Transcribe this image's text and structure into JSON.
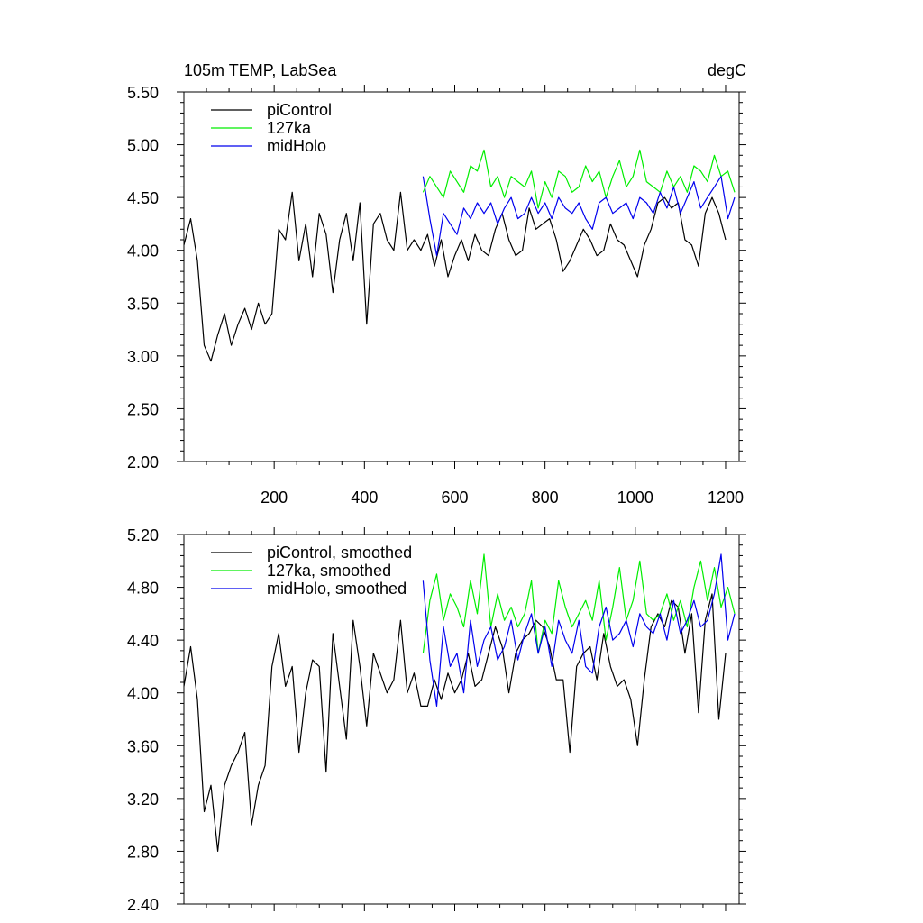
{
  "chart_data": [
    {
      "type": "line",
      "title_left": "105m TEMP, LabSea",
      "title_right": "degC",
      "xlim": [
        0,
        1230
      ],
      "ylim": [
        2.0,
        5.5
      ],
      "yticks": [
        "2.00",
        "2.50",
        "3.00",
        "3.50",
        "4.00",
        "4.50",
        "5.00",
        "5.50"
      ],
      "yticks_values": [
        2.0,
        2.5,
        3.0,
        3.5,
        4.0,
        4.5,
        5.0,
        5.5
      ],
      "xticks": [
        "200",
        "400",
        "600",
        "800",
        "1000",
        "1200"
      ],
      "xticks_values": [
        200,
        400,
        600,
        800,
        1000,
        1200
      ],
      "series": [
        {
          "name": "piControl",
          "color": "#000000",
          "x": [
            0,
            15,
            30,
            45,
            60,
            75,
            90,
            105,
            120,
            135,
            150,
            165,
            180,
            195,
            210,
            225,
            240,
            255,
            270,
            285,
            300,
            315,
            330,
            345,
            360,
            375,
            390,
            405,
            420,
            435,
            450,
            465,
            480,
            495,
            510,
            525,
            540,
            555,
            570,
            585,
            600,
            615,
            630,
            645,
            660,
            675,
            690,
            705,
            720,
            735,
            750,
            765,
            780,
            795,
            810,
            825,
            840,
            855,
            870,
            885,
            900,
            915,
            930,
            945,
            960,
            975,
            990,
            1005,
            1020,
            1035,
            1050,
            1065,
            1080,
            1095,
            1110,
            1125,
            1140,
            1155,
            1170,
            1185,
            1200
          ],
          "values": [
            4.05,
            4.3,
            3.9,
            3.1,
            2.95,
            3.2,
            3.4,
            3.1,
            3.3,
            3.45,
            3.25,
            3.5,
            3.3,
            3.4,
            4.2,
            4.1,
            4.55,
            3.9,
            4.25,
            3.75,
            4.35,
            4.15,
            3.6,
            4.1,
            4.35,
            3.9,
            4.45,
            3.3,
            4.25,
            4.35,
            4.1,
            4.0,
            4.55,
            4.0,
            4.1,
            4.0,
            4.15,
            3.85,
            4.1,
            3.75,
            3.95,
            4.1,
            3.9,
            4.15,
            4.0,
            3.95,
            4.2,
            4.35,
            4.1,
            3.95,
            4.0,
            4.4,
            4.2,
            4.25,
            4.3,
            4.1,
            3.8,
            3.9,
            4.05,
            4.2,
            4.1,
            3.95,
            4.0,
            4.25,
            4.1,
            4.05,
            3.9,
            3.75,
            4.05,
            4.2,
            4.45,
            4.5,
            4.4,
            4.45,
            4.1,
            4.05,
            3.85,
            4.35,
            4.5,
            4.35,
            4.1
          ]
        },
        {
          "name": "127ka",
          "color": "#00ee00",
          "x": [
            530,
            545,
            560,
            575,
            590,
            605,
            620,
            635,
            650,
            665,
            680,
            695,
            710,
            725,
            740,
            755,
            770,
            785,
            800,
            815,
            830,
            845,
            860,
            875,
            890,
            905,
            920,
            935,
            950,
            965,
            980,
            995,
            1010,
            1025,
            1040,
            1055,
            1070,
            1085,
            1100,
            1115,
            1130,
            1145,
            1160,
            1175,
            1190,
            1205,
            1220
          ],
          "values": [
            4.55,
            4.7,
            4.6,
            4.5,
            4.75,
            4.65,
            4.55,
            4.8,
            4.75,
            4.95,
            4.6,
            4.7,
            4.5,
            4.7,
            4.65,
            4.6,
            4.75,
            4.4,
            4.65,
            4.5,
            4.75,
            4.7,
            4.55,
            4.6,
            4.8,
            4.65,
            4.75,
            4.5,
            4.7,
            4.85,
            4.6,
            4.7,
            4.95,
            4.65,
            4.6,
            4.55,
            4.75,
            4.6,
            4.7,
            4.55,
            4.8,
            4.75,
            4.65,
            4.9,
            4.7,
            4.75,
            4.55
          ]
        },
        {
          "name": "midHolo",
          "color": "#0000ee",
          "x": [
            530,
            545,
            560,
            575,
            590,
            605,
            620,
            635,
            650,
            665,
            680,
            695,
            710,
            725,
            740,
            755,
            770,
            785,
            800,
            815,
            830,
            845,
            860,
            875,
            890,
            905,
            920,
            935,
            950,
            965,
            980,
            995,
            1010,
            1025,
            1040,
            1055,
            1070,
            1085,
            1100,
            1115,
            1130,
            1145,
            1160,
            1175,
            1190,
            1205,
            1220
          ],
          "values": [
            4.7,
            4.3,
            3.95,
            4.35,
            4.25,
            4.15,
            4.4,
            4.3,
            4.45,
            4.35,
            4.45,
            4.25,
            4.4,
            4.5,
            4.3,
            4.35,
            4.5,
            4.35,
            4.45,
            4.3,
            4.5,
            4.4,
            4.35,
            4.45,
            4.3,
            4.2,
            4.45,
            4.5,
            4.35,
            4.4,
            4.45,
            4.3,
            4.5,
            4.45,
            4.35,
            4.55,
            4.4,
            4.6,
            4.35,
            4.5,
            4.65,
            4.4,
            4.5,
            4.6,
            4.7,
            4.3,
            4.5
          ]
        }
      ],
      "legend": [
        "piControl",
        "127ka",
        "midHolo"
      ],
      "legend_position": "top-left"
    },
    {
      "type": "line",
      "xlim": [
        0,
        1230
      ],
      "ylim": [
        2.4,
        5.2
      ],
      "yticks": [
        "2.40",
        "2.80",
        "3.20",
        "3.60",
        "4.00",
        "4.40",
        "4.80",
        "5.20"
      ],
      "yticks_values": [
        2.4,
        2.8,
        3.2,
        3.6,
        4.0,
        4.4,
        4.8,
        5.2
      ],
      "xticks_values": [
        200,
        400,
        600,
        800,
        1000,
        1200
      ],
      "series": [
        {
          "name": "piControl, smoothed",
          "color": "#000000",
          "x": [
            0,
            15,
            30,
            45,
            60,
            75,
            90,
            105,
            120,
            135,
            150,
            165,
            180,
            195,
            210,
            225,
            240,
            255,
            270,
            285,
            300,
            315,
            330,
            345,
            360,
            375,
            390,
            405,
            420,
            435,
            450,
            465,
            480,
            495,
            510,
            525,
            540,
            555,
            570,
            585,
            600,
            615,
            630,
            645,
            660,
            675,
            690,
            705,
            720,
            735,
            750,
            765,
            780,
            795,
            810,
            825,
            840,
            855,
            870,
            885,
            900,
            915,
            930,
            945,
            960,
            975,
            990,
            1005,
            1020,
            1035,
            1050,
            1065,
            1080,
            1095,
            1110,
            1125,
            1140,
            1155,
            1170,
            1185,
            1200
          ],
          "values": [
            4.05,
            4.35,
            3.95,
            3.1,
            3.3,
            2.8,
            3.3,
            3.45,
            3.55,
            3.7,
            3.0,
            3.3,
            3.45,
            4.2,
            4.45,
            4.05,
            4.2,
            3.55,
            4.0,
            4.25,
            4.2,
            3.4,
            4.45,
            4.05,
            3.65,
            4.55,
            4.2,
            3.75,
            4.3,
            4.15,
            4.0,
            4.1,
            4.55,
            4.0,
            4.15,
            3.9,
            3.9,
            4.1,
            3.95,
            4.15,
            4.0,
            4.1,
            4.3,
            4.05,
            4.1,
            4.3,
            4.5,
            4.35,
            4.0,
            4.3,
            4.4,
            4.45,
            4.55,
            4.5,
            4.35,
            4.1,
            4.1,
            3.55,
            4.2,
            4.3,
            4.35,
            4.1,
            4.45,
            4.2,
            4.05,
            4.1,
            3.95,
            3.6,
            4.1,
            4.5,
            4.6,
            4.5,
            4.7,
            4.65,
            4.3,
            4.6,
            3.85,
            4.55,
            4.75,
            3.8,
            4.3
          ]
        },
        {
          "name": "127ka, smoothed",
          "color": "#00ee00",
          "x": [
            530,
            545,
            560,
            575,
            590,
            605,
            620,
            635,
            650,
            665,
            680,
            695,
            710,
            725,
            740,
            755,
            770,
            785,
            800,
            815,
            830,
            845,
            860,
            875,
            890,
            905,
            920,
            935,
            950,
            965,
            980,
            995,
            1010,
            1025,
            1040,
            1055,
            1070,
            1085,
            1100,
            1115,
            1130,
            1145,
            1160,
            1175,
            1190,
            1205,
            1220
          ],
          "values": [
            4.3,
            4.7,
            4.9,
            4.55,
            4.75,
            4.65,
            4.5,
            4.85,
            4.6,
            5.05,
            4.5,
            4.75,
            4.55,
            4.65,
            4.5,
            4.6,
            4.85,
            4.3,
            4.55,
            4.45,
            4.85,
            4.65,
            4.5,
            4.6,
            4.7,
            4.55,
            4.85,
            4.4,
            4.65,
            4.95,
            4.55,
            4.7,
            5.0,
            4.6,
            4.55,
            4.6,
            4.75,
            4.55,
            4.7,
            4.5,
            4.8,
            5.0,
            4.7,
            4.95,
            4.65,
            4.8,
            4.6
          ]
        },
        {
          "name": "midHolo, smoothed",
          "color": "#0000ee",
          "x": [
            530,
            545,
            560,
            575,
            590,
            605,
            620,
            635,
            650,
            665,
            680,
            695,
            710,
            725,
            740,
            755,
            770,
            785,
            800,
            815,
            830,
            845,
            860,
            875,
            890,
            905,
            920,
            935,
            950,
            965,
            980,
            995,
            1010,
            1025,
            1040,
            1055,
            1070,
            1085,
            1100,
            1115,
            1130,
            1145,
            1160,
            1175,
            1190,
            1205,
            1220
          ],
          "values": [
            4.85,
            4.25,
            3.9,
            4.5,
            4.2,
            4.3,
            4.0,
            4.55,
            4.2,
            4.4,
            4.5,
            4.25,
            4.35,
            4.55,
            4.25,
            4.45,
            4.6,
            4.3,
            4.5,
            4.2,
            4.55,
            4.4,
            4.3,
            4.55,
            4.2,
            4.15,
            4.5,
            4.65,
            4.4,
            4.45,
            4.55,
            4.35,
            4.6,
            4.5,
            4.45,
            4.6,
            4.4,
            4.7,
            4.45,
            4.55,
            4.7,
            4.5,
            4.55,
            4.75,
            5.05,
            4.4,
            4.6
          ]
        }
      ],
      "legend": [
        "piControl, smoothed",
        "127ka, smoothed",
        "midHolo, smoothed"
      ],
      "legend_position": "top-left"
    }
  ]
}
